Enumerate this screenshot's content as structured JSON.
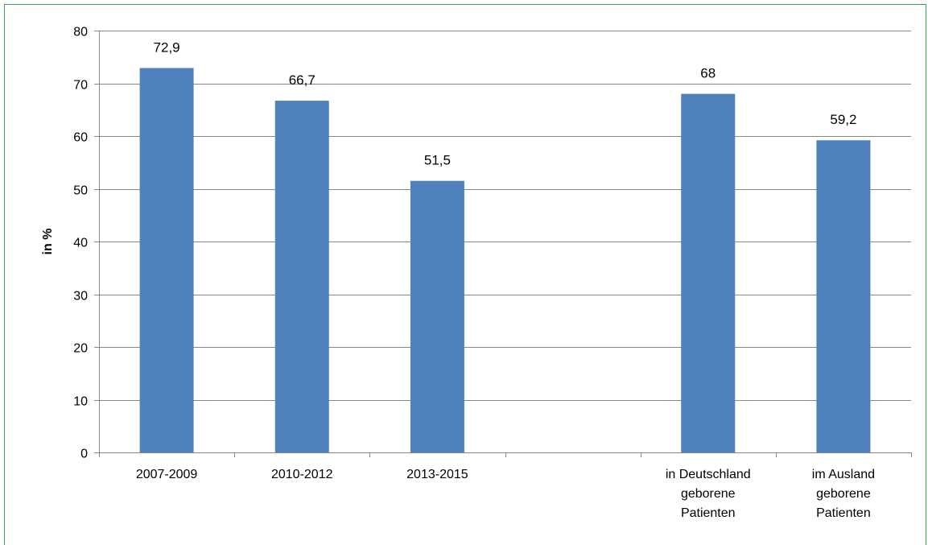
{
  "chart_data": {
    "type": "bar",
    "categories": [
      [
        "2007-2009"
      ],
      [
        "2010-2012"
      ],
      [
        "2013-2015"
      ],
      [
        ""
      ],
      [
        "in Deutschland",
        "geborene",
        "Patienten"
      ],
      [
        "im Ausland",
        "geborene",
        "Patienten"
      ]
    ],
    "values": [
      72.9,
      66.7,
      51.5,
      null,
      68,
      59.2
    ],
    "data_labels": [
      "72,9",
      "66,7",
      "51,5",
      "",
      "68",
      "59,2"
    ],
    "title": "",
    "xlabel": "",
    "ylabel": "in %",
    "ylim": [
      0,
      80
    ],
    "yticks": [
      "0",
      "10",
      "20",
      "30",
      "40",
      "50",
      "60",
      "70",
      "80"
    ],
    "grid": true,
    "legend": "none",
    "colors": {
      "bar": "#4f81bd",
      "grid": "#868686",
      "axis": "#868686",
      "frame": "#3aa655"
    }
  }
}
